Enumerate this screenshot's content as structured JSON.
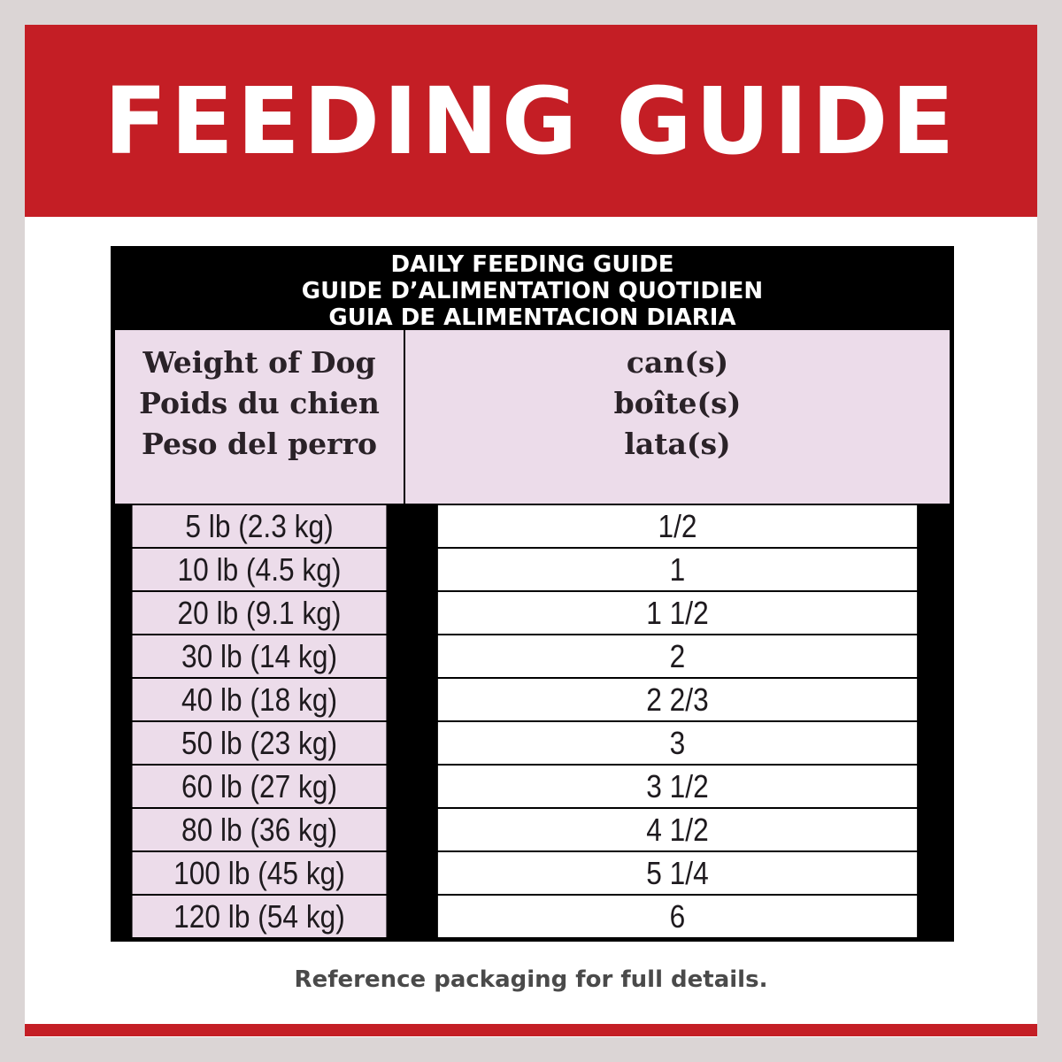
{
  "banner": {
    "title": "FEEDING GUIDE"
  },
  "table": {
    "title_lines": [
      "DAILY FEEDING GUIDE",
      "GUIDE D’ALIMENTATION QUOTIDIEN",
      "GUIA DE ALIMENTACION DIARIA"
    ],
    "col1_header": [
      "Weight of Dog",
      "Poids du chien",
      "Peso del perro"
    ],
    "col2_header": [
      "can(s)",
      "boîte(s)",
      "lata(s)"
    ],
    "rows": [
      {
        "weight": "5 lb (2.3 kg)",
        "cans": "1/2"
      },
      {
        "weight": "10 lb (4.5 kg)",
        "cans": "1"
      },
      {
        "weight": "20 lb (9.1 kg)",
        "cans": "1 1/2"
      },
      {
        "weight": "30 lb (14 kg)",
        "cans": "2"
      },
      {
        "weight": "40 lb (18 kg)",
        "cans": "2 2/3"
      },
      {
        "weight": "50 lb (23 kg)",
        "cans": "3"
      },
      {
        "weight": "60 lb (27 kg)",
        "cans": "3 1/2"
      },
      {
        "weight": "80 lb (36 kg)",
        "cans": "4 1/2"
      },
      {
        "weight": "100 lb (45 kg)",
        "cans": "5 1/4"
      },
      {
        "weight": "120 lb (54 kg)",
        "cans": "6"
      }
    ]
  },
  "footer": {
    "note": "Reference packaging for full details."
  }
}
